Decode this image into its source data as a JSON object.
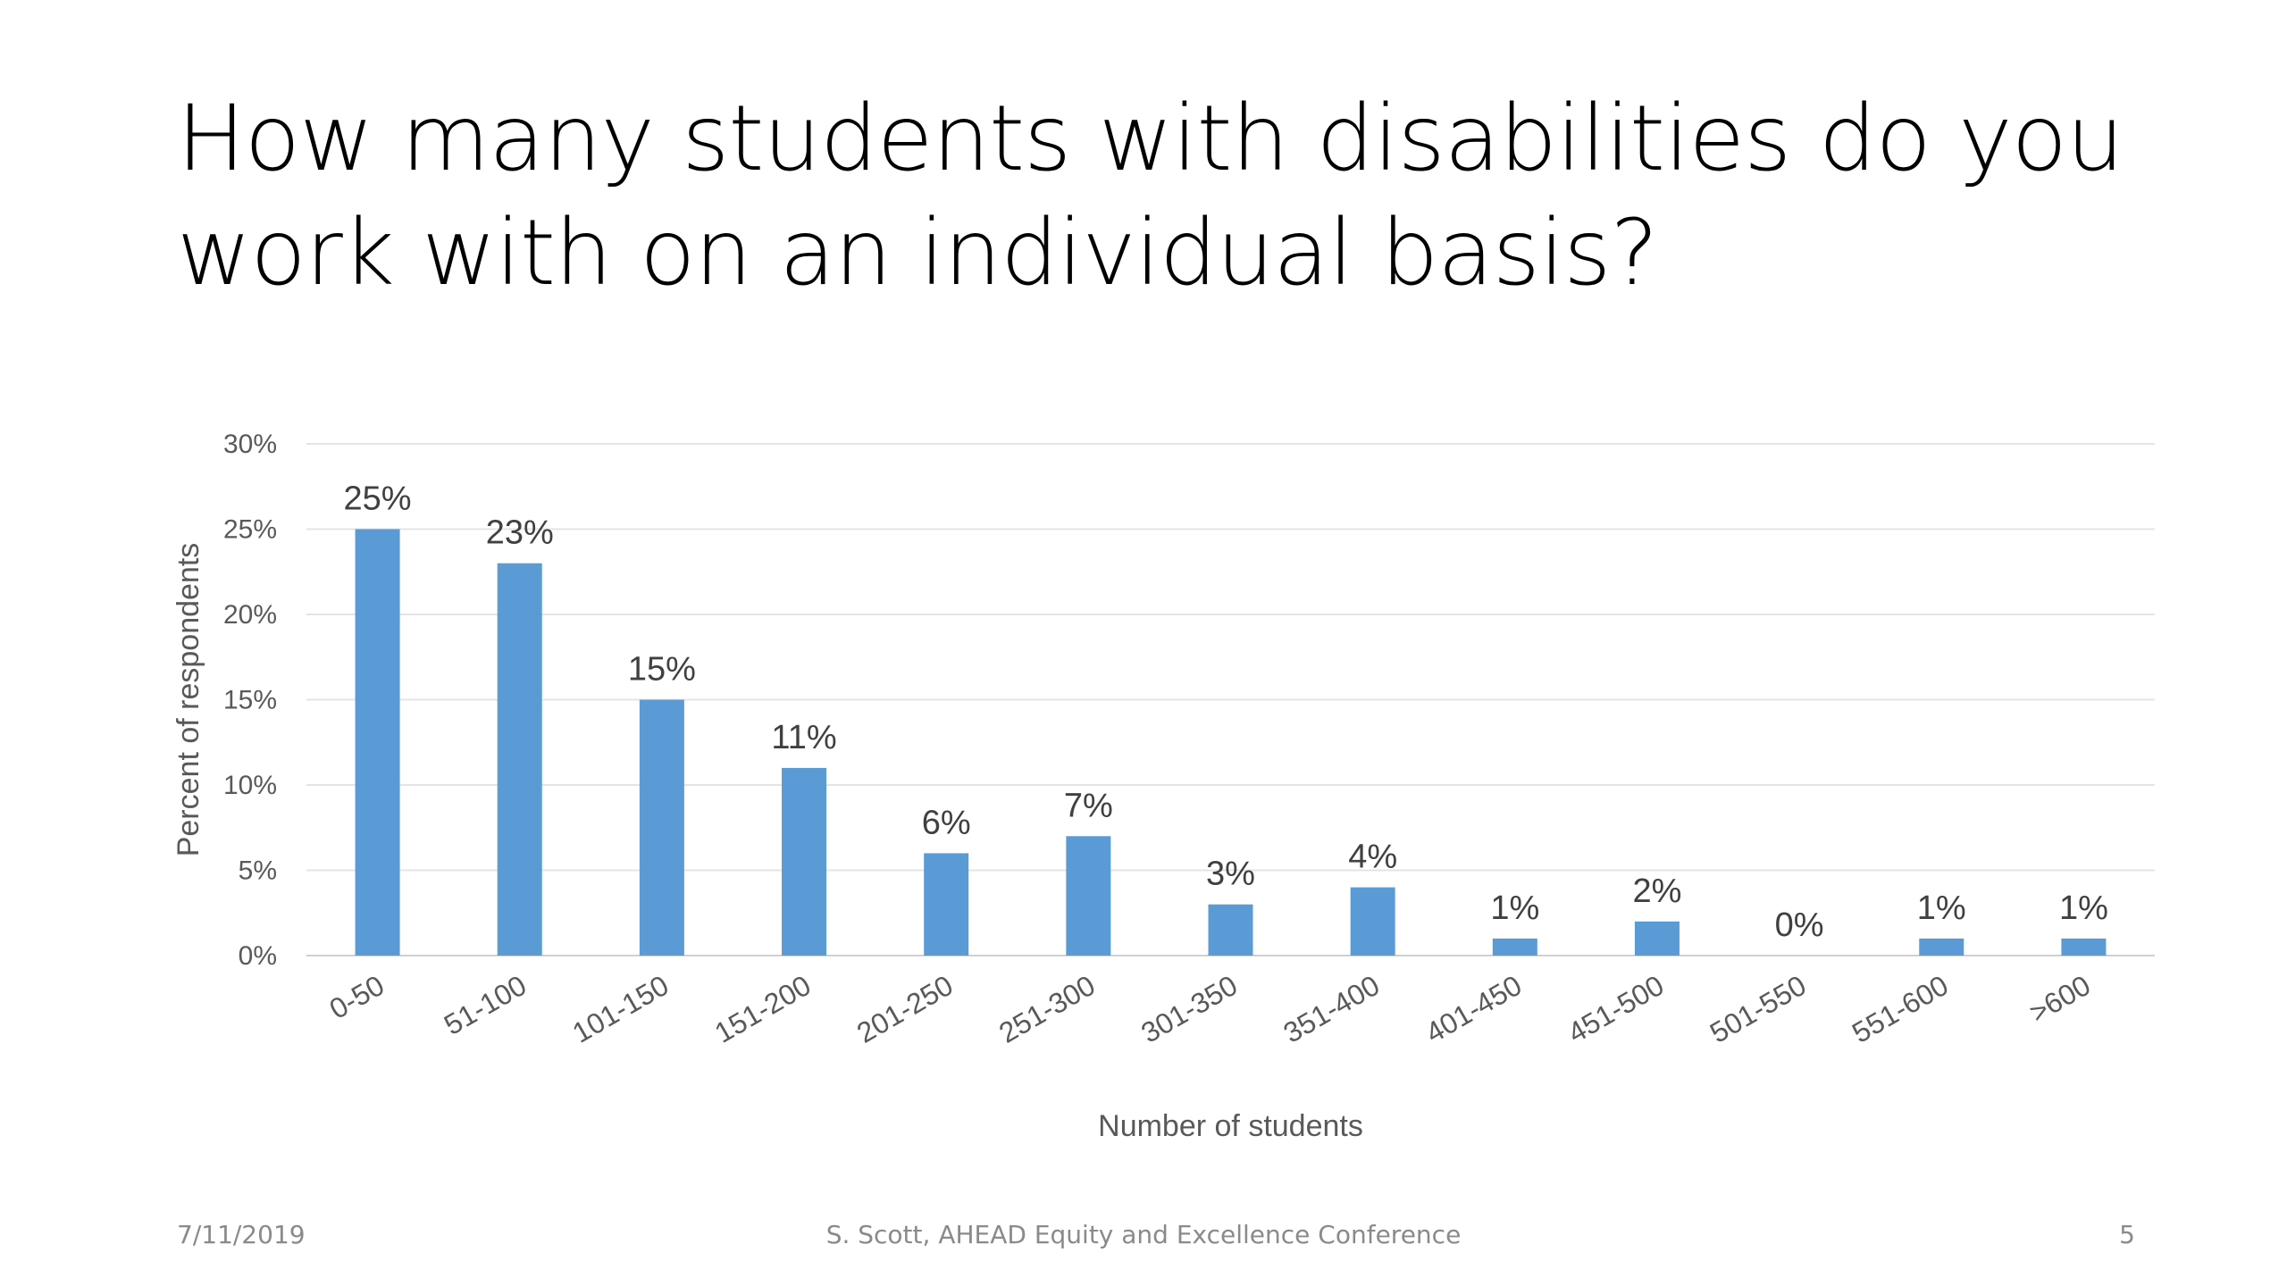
{
  "slide": {
    "title": "How many students with disabilities do you work with on an individual basis?",
    "footer_date": "7/11/2019",
    "footer_center": "S. Scott, AHEAD Equity and Excellence Conference",
    "page_number": "5"
  },
  "chart_data": {
    "type": "bar",
    "title": "",
    "xlabel": "Number of students",
    "ylabel": "Percent of respondents",
    "categories": [
      "0-50",
      "51-100",
      "101-150",
      "151-200",
      "201-250",
      "251-300",
      "301-350",
      "351-400",
      "401-450",
      "451-500",
      "501-550",
      "551-600",
      ">600"
    ],
    "values": [
      25,
      23,
      15,
      11,
      6,
      7,
      3,
      4,
      1,
      2,
      0,
      1,
      1
    ],
    "data_labels": [
      "25%",
      "23%",
      "15%",
      "11%",
      "6%",
      "7%",
      "3%",
      "4%",
      "1%",
      "2%",
      "0%",
      "1%",
      "1%"
    ],
    "ylim": [
      0,
      30
    ],
    "yticks": [
      0,
      5,
      10,
      15,
      20,
      25,
      30
    ],
    "ytick_labels": [
      "0%",
      "5%",
      "10%",
      "15%",
      "20%",
      "25%",
      "30%"
    ],
    "grid": true,
    "legend": "none",
    "bar_color": "#5b9bd5"
  }
}
